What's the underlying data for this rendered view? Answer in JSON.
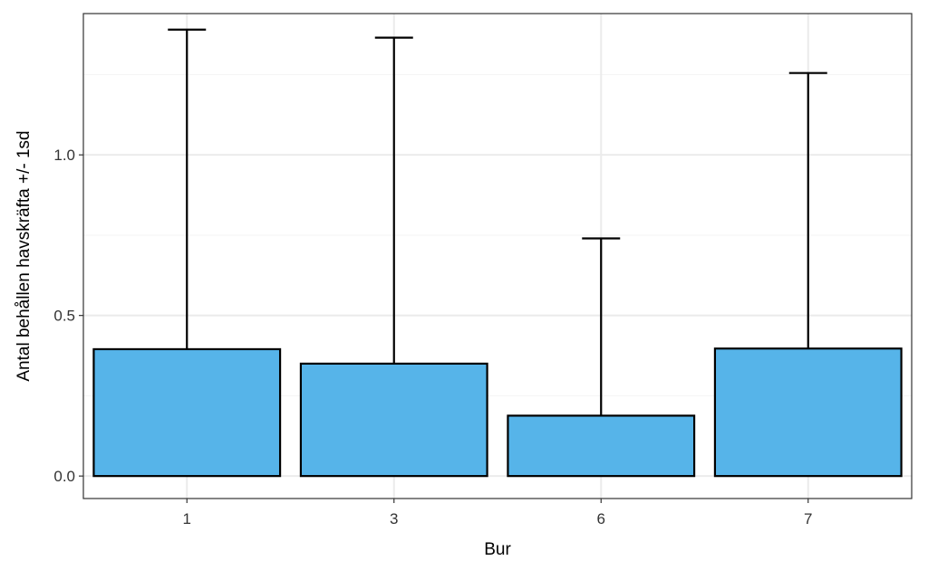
{
  "chart_data": {
    "type": "bar",
    "categories": [
      "1",
      "3",
      "6",
      "7"
    ],
    "values": [
      0.395,
      0.35,
      0.188,
      0.397
    ],
    "error_upper": [
      1.39,
      1.365,
      0.74,
      1.255
    ],
    "xlabel": "Bur",
    "ylabel": "Antal behållen havskräfta +/- 1sd",
    "y_ticks": [
      0.0,
      0.5,
      1.0
    ],
    "y_tick_labels": [
      "0.0",
      "0.5",
      "1.0"
    ],
    "y_minor_ticks": [
      0.25,
      0.75,
      1.25
    ],
    "ylim": [
      -0.07,
      1.44
    ],
    "grid": true,
    "legend": "none",
    "colors": {
      "bar_fill": "#56B4E9",
      "bar_stroke": "#000000",
      "grid_major": "#ebebeb",
      "grid_minor": "#f5f5f5",
      "panel_border": "#333333"
    }
  }
}
